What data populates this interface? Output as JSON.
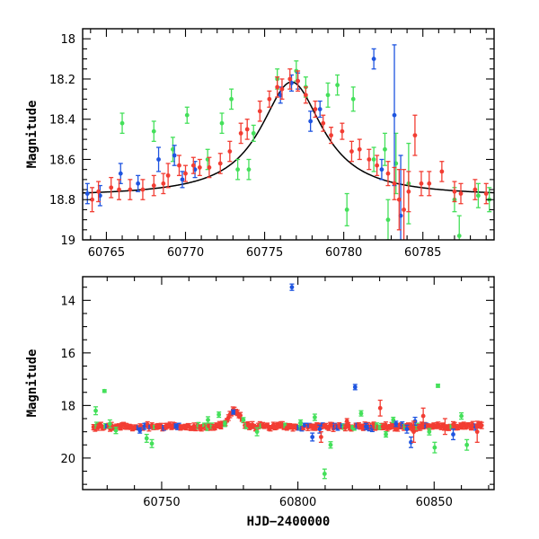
{
  "colors": {
    "green": "#44e05a",
    "blue": "#1f55e0",
    "red": "#f23d33",
    "fit": "#000000"
  },
  "chart_data": [
    {
      "type": "scatter",
      "title": "",
      "xlabel": "",
      "ylabel": "Magnitude",
      "xlim": [
        60763.5,
        60789.5
      ],
      "ylim": [
        19.0,
        17.95
      ],
      "y_inverted": true,
      "xticks": [
        60765,
        60770,
        60775,
        60780,
        60785
      ],
      "xtick_labels": [
        "60765",
        "60770",
        "60775",
        "60780",
        "60785"
      ],
      "yticks": [
        18.0,
        18.2,
        18.4,
        18.6,
        18.8,
        19.0
      ],
      "ytick_labels": [
        "18",
        "18.2",
        "18.4",
        "18.6",
        "18.8",
        "19"
      ],
      "series": [
        {
          "color_key": "green",
          "points": [
            [
              60766.0,
              18.42,
              0.05
            ],
            [
              60768.0,
              18.46,
              0.05
            ],
            [
              60769.2,
              18.55,
              0.06
            ],
            [
              60770.1,
              18.38,
              0.04
            ],
            [
              60771.4,
              18.6,
              0.05
            ],
            [
              60772.3,
              18.42,
              0.05
            ],
            [
              60772.9,
              18.3,
              0.05
            ],
            [
              60773.3,
              18.65,
              0.05
            ],
            [
              60774.0,
              18.65,
              0.05
            ],
            [
              60774.3,
              18.47,
              0.04
            ],
            [
              60775.8,
              18.2,
              0.05
            ],
            [
              60777.0,
              18.16,
              0.05
            ],
            [
              60777.6,
              18.24,
              0.05
            ],
            [
              60779.0,
              18.28,
              0.06
            ],
            [
              60779.6,
              18.23,
              0.05
            ],
            [
              60780.6,
              18.3,
              0.06
            ],
            [
              60780.2,
              18.85,
              0.08
            ],
            [
              60781.9,
              18.6,
              0.06
            ],
            [
              60782.6,
              18.55,
              0.08
            ],
            [
              60782.8,
              18.9,
              0.1
            ],
            [
              60783.3,
              18.62,
              0.15
            ],
            [
              60784.1,
              18.72,
              0.2
            ],
            [
              60787.0,
              18.8,
              0.06
            ],
            [
              60787.3,
              18.98,
              0.1
            ],
            [
              60788.5,
              18.78,
              0.06
            ],
            [
              60789.2,
              18.8,
              0.06
            ]
          ]
        },
        {
          "color_key": "blue",
          "points": [
            [
              60763.8,
              18.77,
              0.05
            ],
            [
              60764.6,
              18.78,
              0.05
            ],
            [
              60765.9,
              18.67,
              0.05
            ],
            [
              60767.0,
              18.72,
              0.04
            ],
            [
              60768.3,
              18.6,
              0.06
            ],
            [
              60769.3,
              18.58,
              0.05
            ],
            [
              60769.8,
              18.7,
              0.04
            ],
            [
              60770.6,
              18.65,
              0.04
            ],
            [
              60776.0,
              18.28,
              0.04
            ],
            [
              60776.7,
              18.22,
              0.04
            ],
            [
              60777.1,
              18.21,
              0.04
            ],
            [
              60777.9,
              18.41,
              0.05
            ],
            [
              60778.5,
              18.35,
              0.04
            ],
            [
              60781.9,
              18.1,
              0.05
            ],
            [
              60782.4,
              18.65,
              0.05
            ],
            [
              60783.2,
              18.38,
              0.35
            ],
            [
              60783.6,
              18.88,
              0.3
            ]
          ]
        },
        {
          "color_key": "red",
          "points": [
            [
              60764.1,
              18.8,
              0.06
            ],
            [
              60764.5,
              18.76,
              0.05
            ],
            [
              60765.3,
              18.74,
              0.05
            ],
            [
              60765.8,
              18.75,
              0.05
            ],
            [
              60766.5,
              18.75,
              0.05
            ],
            [
              60767.3,
              18.75,
              0.05
            ],
            [
              60768.0,
              18.73,
              0.05
            ],
            [
              60768.6,
              18.72,
              0.05
            ],
            [
              60768.9,
              18.68,
              0.06
            ],
            [
              60769.6,
              18.63,
              0.05
            ],
            [
              60770.0,
              18.67,
              0.04
            ],
            [
              60770.5,
              18.63,
              0.04
            ],
            [
              60770.9,
              18.64,
              0.04
            ],
            [
              60771.5,
              18.64,
              0.05
            ],
            [
              60772.2,
              18.62,
              0.05
            ],
            [
              60772.8,
              18.56,
              0.05
            ],
            [
              60773.5,
              18.47,
              0.05
            ],
            [
              60773.9,
              18.45,
              0.05
            ],
            [
              60774.7,
              18.36,
              0.05
            ],
            [
              60775.3,
              18.3,
              0.04
            ],
            [
              60775.8,
              18.24,
              0.05
            ],
            [
              60776.1,
              18.25,
              0.05
            ],
            [
              60776.6,
              18.2,
              0.05
            ],
            [
              60777.1,
              18.21,
              0.05
            ],
            [
              60777.6,
              18.28,
              0.04
            ],
            [
              60778.2,
              18.35,
              0.04
            ],
            [
              60778.7,
              18.42,
              0.04
            ],
            [
              60779.2,
              18.48,
              0.04
            ],
            [
              60779.9,
              18.46,
              0.04
            ],
            [
              60780.5,
              18.56,
              0.05
            ],
            [
              60781.0,
              18.55,
              0.05
            ],
            [
              60781.6,
              18.6,
              0.05
            ],
            [
              60782.1,
              18.63,
              0.05
            ],
            [
              60782.8,
              18.67,
              0.06
            ],
            [
              60783.2,
              18.72,
              0.08
            ],
            [
              60783.5,
              18.8,
              0.15
            ],
            [
              60783.8,
              18.85,
              0.2
            ],
            [
              60784.1,
              18.76,
              0.1
            ],
            [
              60784.5,
              18.48,
              0.1
            ],
            [
              60784.9,
              18.72,
              0.06
            ],
            [
              60785.4,
              18.72,
              0.06
            ],
            [
              60786.2,
              18.66,
              0.05
            ],
            [
              60787.0,
              18.76,
              0.05
            ],
            [
              60787.4,
              18.77,
              0.05
            ],
            [
              60788.3,
              18.75,
              0.05
            ],
            [
              60789.0,
              18.77,
              0.05
            ]
          ]
        }
      ],
      "fit_curve": {
        "t0": 60776.7,
        "base_mag": 18.785,
        "peak_mag": 18.215,
        "timescale_days": 2.4,
        "exponent": 2
      }
    },
    {
      "type": "scatter",
      "title": "",
      "xlabel": "HJD−2400000",
      "ylabel": "Magnitude",
      "xlim": [
        60721,
        60872
      ],
      "ylim": [
        21.2,
        13.1
      ],
      "y_inverted": true,
      "xticks": [
        60750,
        60800,
        60850
      ],
      "xtick_labels": [
        "60750",
        "60800",
        "60850"
      ],
      "yticks": [
        14,
        16,
        18,
        20
      ],
      "ytick_labels": [
        "14",
        "16",
        "18",
        "20"
      ],
      "series": [
        {
          "color_key": "green",
          "points": [
            [
              60725.8,
              18.2,
              0.15
            ],
            [
              60729.0,
              17.45,
              0.05
            ],
            [
              60731.0,
              18.7,
              0.15
            ],
            [
              60733.2,
              18.95,
              0.12
            ],
            [
              60744.5,
              19.25,
              0.15
            ],
            [
              60746.4,
              19.45,
              0.15
            ],
            [
              60767.0,
              18.55,
              0.12
            ],
            [
              60771.0,
              18.35,
              0.1
            ],
            [
              60773.2,
              18.7,
              0.1
            ],
            [
              60785.0,
              19.0,
              0.15
            ],
            [
              60801.0,
              18.65,
              0.1
            ],
            [
              60806.2,
              18.45,
              0.12
            ],
            [
              60809.8,
              20.6,
              0.18
            ],
            [
              60812.0,
              19.5,
              0.12
            ],
            [
              60823.2,
              18.3,
              0.1
            ],
            [
              60832.3,
              19.1,
              0.1
            ],
            [
              60835.0,
              18.55,
              0.1
            ],
            [
              60848.2,
              19.0,
              0.12
            ],
            [
              60850.2,
              19.6,
              0.2
            ],
            [
              60851.4,
              17.25,
              0.06
            ],
            [
              60860.0,
              18.4,
              0.12
            ],
            [
              60862.0,
              19.5,
              0.2
            ]
          ]
        },
        {
          "color_key": "blue",
          "points": [
            [
              60742.0,
              18.95,
              0.1
            ],
            [
              60776.3,
              18.25,
              0.08
            ],
            [
              60797.8,
              13.5,
              0.12
            ],
            [
              60805.3,
              19.2,
              0.15
            ],
            [
              60808.0,
              18.9,
              0.15
            ],
            [
              60821.0,
              17.3,
              0.1
            ],
            [
              60825.0,
              18.8,
              0.12
            ],
            [
              60836.0,
              18.7,
              0.1
            ],
            [
              60840.0,
              18.9,
              0.15
            ],
            [
              60841.5,
              19.4,
              0.2
            ],
            [
              60843.0,
              18.6,
              0.15
            ],
            [
              60857.0,
              19.1,
              0.2
            ]
          ]
        },
        {
          "color_key": "red",
          "points": [
            [
              60808.5,
              19.2,
              0.2
            ],
            [
              60818.0,
              18.6,
              0.1
            ],
            [
              60830.2,
              18.1,
              0.3
            ],
            [
              60842.5,
              19.0,
              0.4
            ],
            [
              60846.0,
              18.4,
              0.3
            ],
            [
              60854.0,
              18.8,
              0.3
            ],
            [
              60865.8,
              19.0,
              0.4
            ]
          ]
        }
      ],
      "baseline_band": {
        "x_start": 60725,
        "x_end": 60868,
        "level": 18.8,
        "scatter": 0.08,
        "bump_center": 60776.7,
        "bump_peak": 18.2,
        "bump_width": 3.0
      }
    }
  ]
}
